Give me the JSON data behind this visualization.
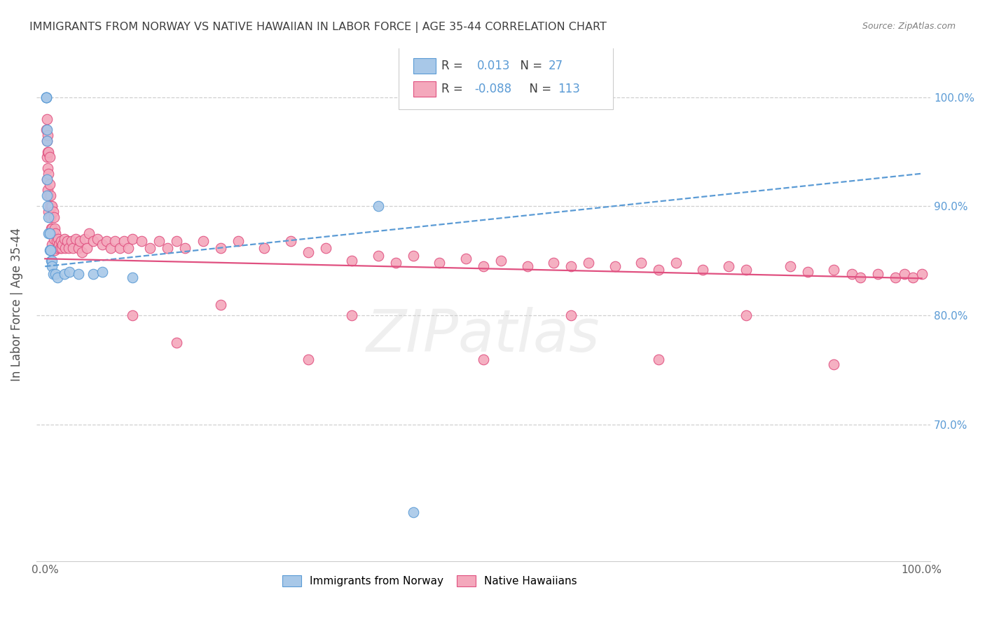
{
  "title": "IMMIGRANTS FROM NORWAY VS NATIVE HAWAIIAN IN LABOR FORCE | AGE 35-44 CORRELATION CHART",
  "source": "Source: ZipAtlas.com",
  "ylabel": "In Labor Force | Age 35-44",
  "xlim": [
    -0.01,
    1.01
  ],
  "ylim": [
    0.575,
    1.045
  ],
  "yticks": [
    0.7,
    0.8,
    0.9,
    1.0
  ],
  "ytick_labels": [
    "70.0%",
    "80.0%",
    "90.0%",
    "100.0%"
  ],
  "xticks": [
    0.0,
    0.2,
    0.4,
    0.6,
    0.8,
    1.0
  ],
  "xtick_labels": [
    "0.0%",
    "",
    "",
    "",
    "",
    "100.0%"
  ],
  "color_norway": "#a8c8e8",
  "color_norway_edge": "#5b9bd5",
  "color_hawaii": "#f4a8bc",
  "color_hawaii_edge": "#e05080",
  "color_norway_line": "#5b9bd5",
  "color_hawaii_line": "#e05080",
  "color_axis_right": "#5b9bd5",
  "color_title": "#404040",
  "color_source": "#808080",
  "background_color": "#ffffff",
  "grid_color": "#d0d0d0",
  "norway_trend_x": [
    0.0,
    1.0
  ],
  "norway_trend_y": [
    0.845,
    0.93
  ],
  "hawaii_trend_x": [
    0.0,
    1.0
  ],
  "hawaii_trend_y": [
    0.852,
    0.834
  ],
  "norway_x": [
    0.001,
    0.001,
    0.001,
    0.002,
    0.002,
    0.002,
    0.002,
    0.003,
    0.004,
    0.004,
    0.005,
    0.005,
    0.006,
    0.007,
    0.008,
    0.008,
    0.009,
    0.012,
    0.014,
    0.022,
    0.028,
    0.038,
    0.055,
    0.065,
    0.1,
    0.38,
    0.42
  ],
  "norway_y": [
    1.0,
    1.0,
    1.0,
    0.97,
    0.96,
    0.925,
    0.91,
    0.9,
    0.89,
    0.875,
    0.875,
    0.86,
    0.86,
    0.85,
    0.85,
    0.845,
    0.838,
    0.838,
    0.835,
    0.838,
    0.84,
    0.838,
    0.838,
    0.84,
    0.835,
    0.9,
    0.62
  ],
  "hawaii_x": [
    0.001,
    0.002,
    0.002,
    0.002,
    0.002,
    0.003,
    0.003,
    0.003,
    0.003,
    0.004,
    0.004,
    0.004,
    0.004,
    0.005,
    0.005,
    0.005,
    0.006,
    0.006,
    0.007,
    0.007,
    0.008,
    0.008,
    0.008,
    0.009,
    0.009,
    0.01,
    0.01,
    0.011,
    0.011,
    0.012,
    0.013,
    0.014,
    0.015,
    0.016,
    0.017,
    0.018,
    0.019,
    0.02,
    0.022,
    0.023,
    0.025,
    0.027,
    0.03,
    0.032,
    0.035,
    0.038,
    0.04,
    0.042,
    0.045,
    0.048,
    0.05,
    0.055,
    0.06,
    0.065,
    0.07,
    0.075,
    0.08,
    0.085,
    0.09,
    0.095,
    0.1,
    0.11,
    0.12,
    0.13,
    0.14,
    0.15,
    0.16,
    0.18,
    0.2,
    0.22,
    0.25,
    0.28,
    0.3,
    0.32,
    0.35,
    0.38,
    0.4,
    0.42,
    0.45,
    0.48,
    0.5,
    0.52,
    0.55,
    0.58,
    0.6,
    0.62,
    0.65,
    0.68,
    0.7,
    0.72,
    0.75,
    0.78,
    0.8,
    0.85,
    0.87,
    0.9,
    0.92,
    0.93,
    0.95,
    0.97,
    0.98,
    0.99,
    1.0,
    0.1,
    0.15,
    0.2,
    0.3,
    0.35,
    0.5,
    0.6,
    0.7,
    0.8,
    0.9
  ],
  "hawaii_y": [
    0.97,
    0.98,
    0.96,
    0.945,
    0.925,
    0.965,
    0.95,
    0.935,
    0.915,
    0.95,
    0.93,
    0.91,
    0.895,
    0.945,
    0.92,
    0.9,
    0.91,
    0.89,
    0.9,
    0.88,
    0.9,
    0.88,
    0.865,
    0.895,
    0.875,
    0.89,
    0.87,
    0.88,
    0.86,
    0.875,
    0.868,
    0.862,
    0.87,
    0.865,
    0.862,
    0.868,
    0.862,
    0.865,
    0.87,
    0.862,
    0.868,
    0.862,
    0.868,
    0.862,
    0.87,
    0.862,
    0.868,
    0.858,
    0.87,
    0.862,
    0.875,
    0.868,
    0.87,
    0.865,
    0.868,
    0.862,
    0.868,
    0.862,
    0.868,
    0.862,
    0.87,
    0.868,
    0.862,
    0.868,
    0.862,
    0.868,
    0.862,
    0.868,
    0.862,
    0.868,
    0.862,
    0.868,
    0.858,
    0.862,
    0.85,
    0.855,
    0.848,
    0.855,
    0.848,
    0.852,
    0.845,
    0.85,
    0.845,
    0.848,
    0.845,
    0.848,
    0.845,
    0.848,
    0.842,
    0.848,
    0.842,
    0.845,
    0.842,
    0.845,
    0.84,
    0.842,
    0.838,
    0.835,
    0.838,
    0.835,
    0.838,
    0.835,
    0.838,
    0.8,
    0.775,
    0.81,
    0.76,
    0.8,
    0.76,
    0.8,
    0.76,
    0.8,
    0.755
  ]
}
